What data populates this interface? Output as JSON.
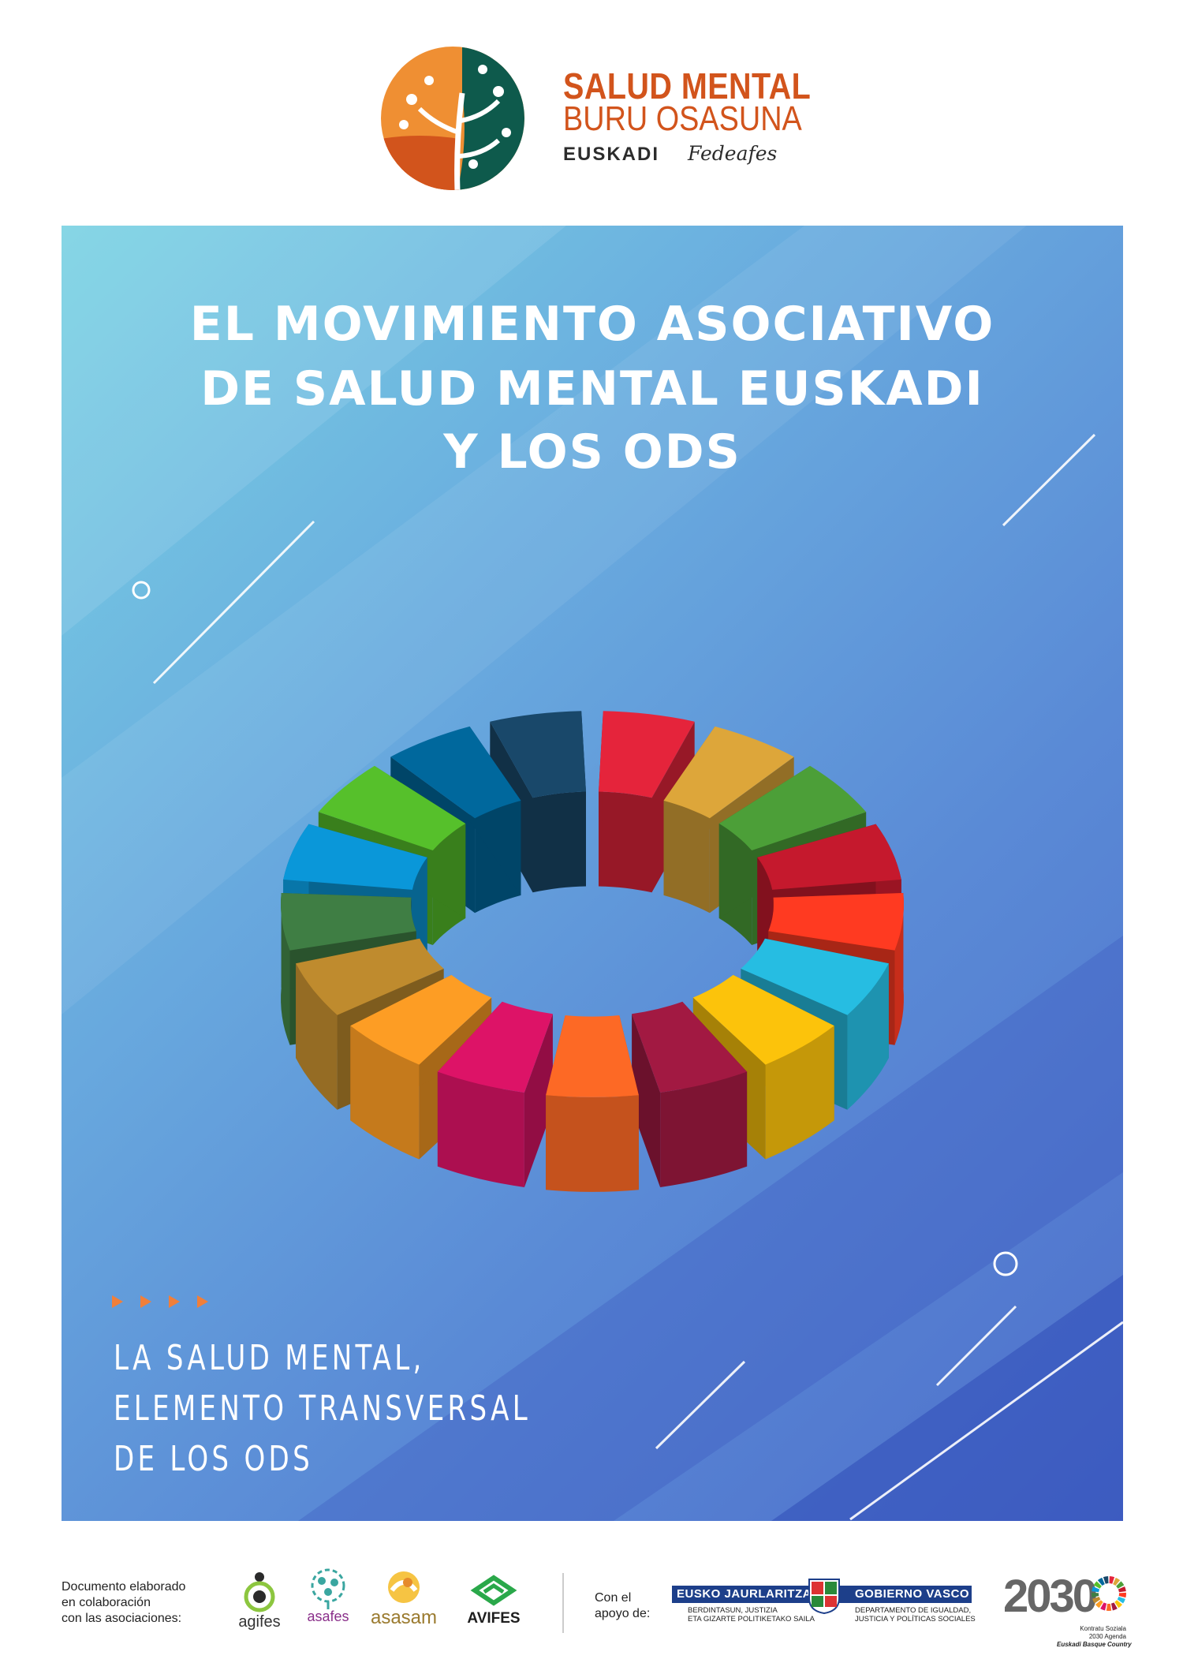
{
  "header": {
    "brand_line1": "SALUD MENTAL",
    "brand_line2": "BURU OSASUNA",
    "brand_line3a": "EUSKADI",
    "brand_line3b": "Fedeafes",
    "brand_colors": [
      "#ef8f33",
      "#d2541c",
      "#0e5a4c"
    ]
  },
  "poster": {
    "title_lines": [
      "EL MOVIMIENTO ASOCIATIVO",
      "DE SALUD MENTAL EUSKADI",
      "Y LOS ODS"
    ],
    "subtitle_lines": [
      "LA SALUD MENTAL,",
      "ELEMENTO TRANSVERSAL",
      "DE LOS ODS"
    ],
    "accent_color": "#f07f3a",
    "wheel_colors": [
      "#e5243b",
      "#dda63a",
      "#4c9f38",
      "#c5192d",
      "#ff3a21",
      "#26bde2",
      "#fcc30b",
      "#a21942",
      "#fd6925",
      "#dd1367",
      "#fd9d24",
      "#bf8b2e",
      "#3f7e44",
      "#0a97d9",
      "#56c02b",
      "#00689d",
      "#19486a"
    ]
  },
  "footer": {
    "collab_text": [
      "Documento elaborado",
      "en colaboración",
      "con las asociaciones:"
    ],
    "associations": [
      "agifes",
      "asafes",
      "asasam",
      "AVIFES"
    ],
    "support_text": [
      "Con el",
      "apoyo de:"
    ],
    "gov_left": "EUSKO JAURLARITZA",
    "gov_right": "GOBIERNO VASCO",
    "gov_left_sub": [
      "BERDINTASUN, JUSTIZIA",
      "ETA GIZARTE POLITIKETAKO SAILA"
    ],
    "gov_right_sub": [
      "DEPARTAMENTO DE IGUALDAD,",
      "JUSTICIA Y POLÍTICAS SOCIALES"
    ],
    "agenda_number": "2030",
    "agenda_sub": [
      "Kontratu Soziala",
      "2030 Agenda",
      "Euskadi Basque Country"
    ]
  }
}
